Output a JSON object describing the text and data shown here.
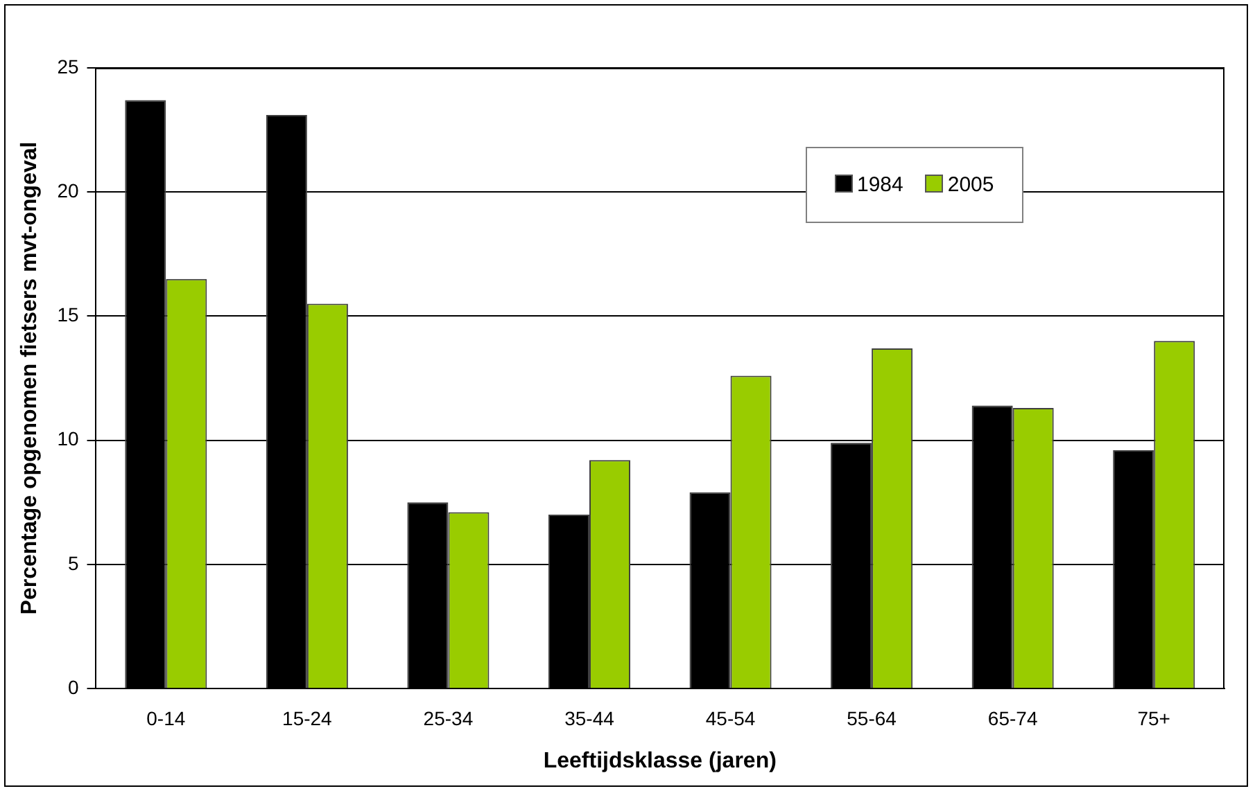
{
  "chart_data": {
    "type": "bar",
    "xlabel": "Leeftijdsklasse (jaren)",
    "ylabel": "Percentage opgenomen fietsers mvt-ongeval",
    "categories": [
      "0-14",
      "15-24",
      "25-34",
      "35-44",
      "45-54",
      "55-64",
      "65-74",
      "75+"
    ],
    "series": [
      {
        "name": "1984",
        "color": "#000000",
        "values": [
          23.7,
          23.1,
          7.5,
          7.0,
          7.9,
          9.9,
          11.4,
          9.6
        ]
      },
      {
        "name": "2005",
        "color": "#99cc00",
        "values": [
          16.5,
          15.5,
          7.1,
          9.2,
          12.6,
          13.7,
          11.3,
          14.0
        ]
      }
    ],
    "ylim": [
      0,
      25
    ],
    "yticks": [
      0,
      5,
      10,
      15,
      20,
      25
    ],
    "grid": "y",
    "legend": "top right"
  }
}
